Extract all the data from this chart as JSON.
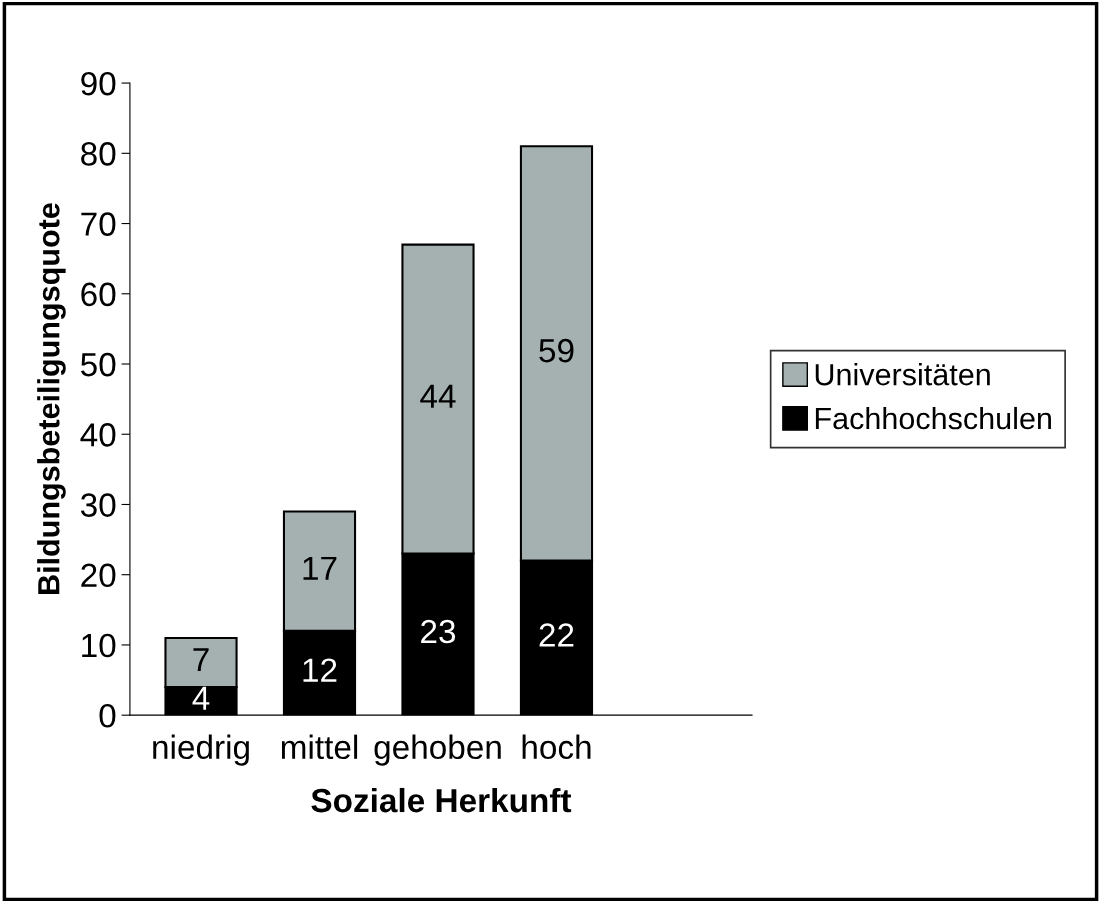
{
  "chart_data": {
    "type": "bar",
    "stacked": true,
    "xlabel": "Soziale Herkunft",
    "ylabel": "Bildungsbeteiligungsquote",
    "categories": [
      "niedrig",
      "mittel",
      "gehoben",
      "hoch"
    ],
    "series": [
      {
        "name": "Fachhochschulen",
        "color": "#000000",
        "values": [
          4,
          12,
          23,
          22
        ]
      },
      {
        "name": "Universitäten",
        "color": "#a5b1b1",
        "values": [
          7,
          17,
          44,
          59
        ]
      }
    ],
    "ylim": [
      0,
      90
    ],
    "yticks": [
      0,
      10,
      20,
      30,
      40,
      50,
      60,
      70,
      80,
      90
    ],
    "data_labels": true,
    "grid": false,
    "legend": "right"
  }
}
